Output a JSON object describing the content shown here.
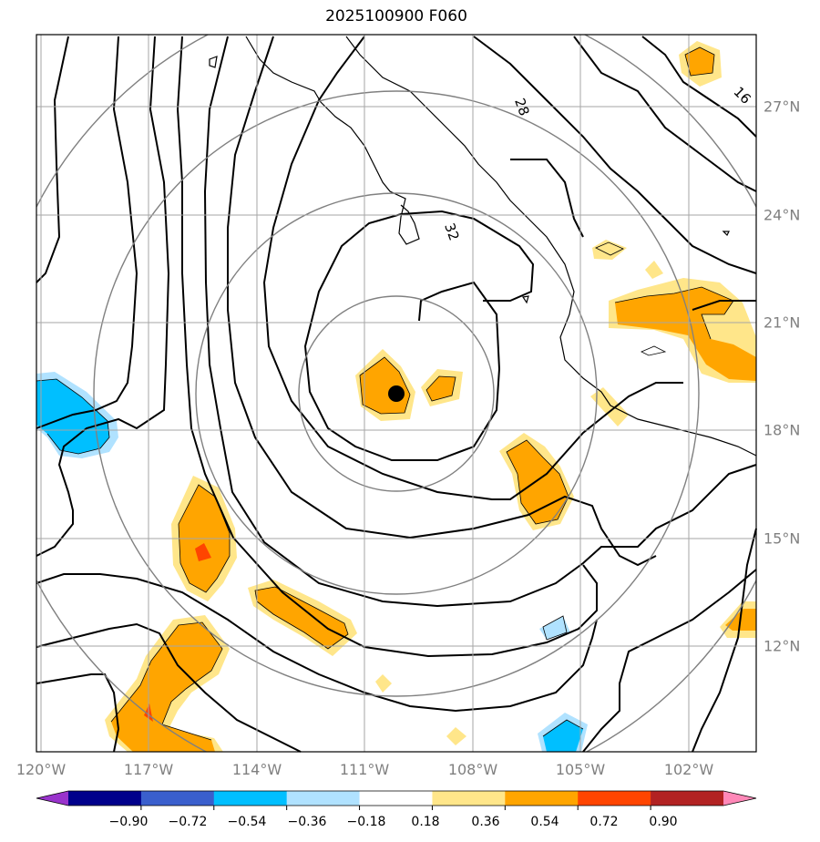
{
  "title": "2025100900 F060",
  "lon_labels": [
    "120°W",
    "117°W",
    "114°W",
    "111°W",
    "108°W",
    "105°W",
    "102°W"
  ],
  "lat_labels": [
    "27°N",
    "24°N",
    "21°N",
    "18°N",
    "15°N",
    "12°N"
  ],
  "contour_labels": [
    "28",
    "32",
    "16"
  ],
  "colorbar": {
    "ticks": [
      "−0.90",
      "−0.72",
      "−0.54",
      "−0.36",
      "−0.18",
      "0.18",
      "0.36",
      "0.54",
      "0.72",
      "0.90"
    ],
    "colors": [
      "#9933cc",
      "#00008b",
      "#3a5fcd",
      "#00bfff",
      "#b0e2ff",
      "#ffffff",
      "#ffe68a",
      "#ffa500",
      "#ff4500",
      "#b22222",
      "#ff88b8"
    ]
  },
  "center_marker": {
    "lon": -109.8,
    "lat": 19.0
  },
  "colors": {
    "grid": "#a6a6a6",
    "rings": "#808080",
    "labels": "#808080"
  }
}
